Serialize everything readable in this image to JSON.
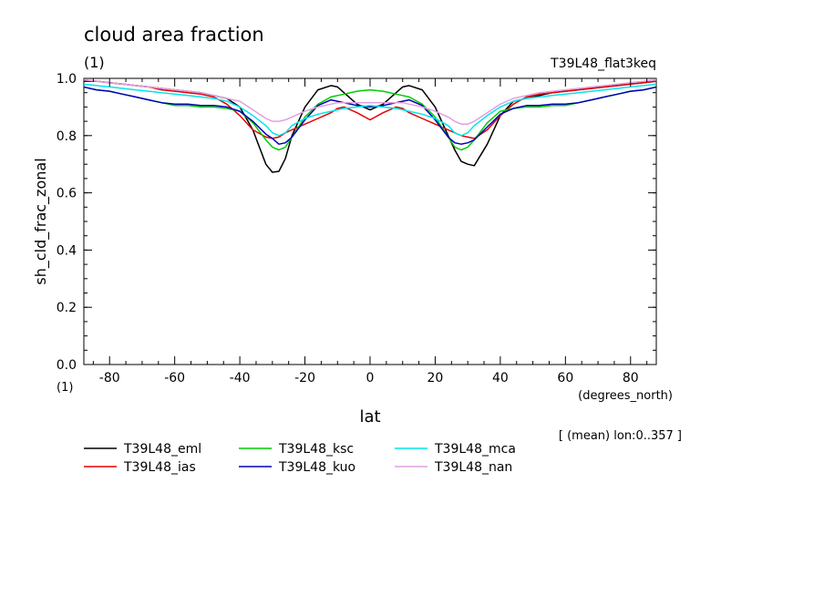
{
  "chart_data": {
    "type": "line",
    "title": "cloud area fraction",
    "title_units": "(1)",
    "subtitle_right": "T39L48_flat3keq",
    "ylabel": "sh_cld_frac_zonal",
    "ylabel_units": "(1)",
    "xlabel": "lat",
    "xlabel_units": "(degrees_north)",
    "footnote": "[ (mean) lon:0..357 ]",
    "xlim": [
      -87.9,
      87.9
    ],
    "ylim": [
      0.0,
      1.0
    ],
    "x_ticks": [
      -80,
      -60,
      -40,
      -20,
      0,
      20,
      40,
      60,
      80
    ],
    "x_tick_labels": [
      "-80",
      "-60",
      "-40",
      "-20",
      "0",
      "20",
      "40",
      "60",
      "80"
    ],
    "y_ticks": [
      0.0,
      0.2,
      0.4,
      0.6,
      0.8,
      1.0
    ],
    "y_tick_labels": [
      "0.0",
      "0.2",
      "0.4",
      "0.6",
      "0.8",
      "1.0"
    ],
    "grid": false,
    "legend_position": "bottom",
    "x": [
      -88,
      -84,
      -80,
      -76,
      -72,
      -68,
      -64,
      -60,
      -56,
      -52,
      -48,
      -44,
      -40,
      -36,
      -32,
      -30,
      -28,
      -26,
      -24,
      -20,
      -16,
      -12,
      -10,
      -8,
      -4,
      0,
      4,
      8,
      10,
      12,
      16,
      20,
      24,
      26,
      28,
      30,
      32,
      36,
      40,
      44,
      48,
      52,
      56,
      60,
      64,
      68,
      72,
      76,
      80,
      84,
      88
    ],
    "series": [
      {
        "name": "T39L48_eml",
        "color": "#000000",
        "values": [
          0.99,
          0.99,
          0.985,
          0.98,
          0.975,
          0.97,
          0.965,
          0.96,
          0.955,
          0.95,
          0.94,
          0.93,
          0.9,
          0.82,
          0.7,
          0.672,
          0.675,
          0.72,
          0.8,
          0.9,
          0.96,
          0.975,
          0.97,
          0.95,
          0.91,
          0.89,
          0.91,
          0.95,
          0.97,
          0.975,
          0.96,
          0.9,
          0.8,
          0.75,
          0.71,
          0.7,
          0.695,
          0.77,
          0.87,
          0.92,
          0.93,
          0.94,
          0.95,
          0.955,
          0.96,
          0.965,
          0.97,
          0.975,
          0.98,
          0.985,
          0.99
        ]
      },
      {
        "name": "T39L48_ias",
        "color": "#e60000",
        "values": [
          0.995,
          0.99,
          0.985,
          0.98,
          0.975,
          0.97,
          0.96,
          0.955,
          0.95,
          0.945,
          0.935,
          0.91,
          0.87,
          0.82,
          0.795,
          0.79,
          0.795,
          0.81,
          0.82,
          0.84,
          0.86,
          0.88,
          0.895,
          0.9,
          0.88,
          0.855,
          0.88,
          0.9,
          0.895,
          0.88,
          0.86,
          0.84,
          0.82,
          0.81,
          0.8,
          0.795,
          0.79,
          0.82,
          0.87,
          0.91,
          0.935,
          0.945,
          0.95,
          0.955,
          0.96,
          0.965,
          0.97,
          0.975,
          0.98,
          0.985,
          0.99
        ]
      },
      {
        "name": "T39L48_ksc",
        "color": "#00cc00",
        "values": [
          0.97,
          0.96,
          0.955,
          0.945,
          0.935,
          0.925,
          0.915,
          0.905,
          0.905,
          0.9,
          0.9,
          0.895,
          0.885,
          0.845,
          0.785,
          0.76,
          0.75,
          0.76,
          0.795,
          0.865,
          0.91,
          0.935,
          0.94,
          0.945,
          0.955,
          0.96,
          0.955,
          0.945,
          0.94,
          0.935,
          0.91,
          0.865,
          0.795,
          0.76,
          0.75,
          0.76,
          0.785,
          0.845,
          0.885,
          0.895,
          0.9,
          0.9,
          0.905,
          0.905,
          0.915,
          0.925,
          0.935,
          0.945,
          0.955,
          0.96,
          0.97
        ]
      },
      {
        "name": "T39L48_kuo",
        "color": "#0000bb",
        "values": [
          0.97,
          0.96,
          0.955,
          0.945,
          0.935,
          0.925,
          0.915,
          0.91,
          0.91,
          0.905,
          0.905,
          0.9,
          0.885,
          0.85,
          0.805,
          0.79,
          0.77,
          0.775,
          0.795,
          0.855,
          0.905,
          0.925,
          0.92,
          0.915,
          0.905,
          0.9,
          0.905,
          0.915,
          0.92,
          0.925,
          0.905,
          0.855,
          0.795,
          0.775,
          0.77,
          0.775,
          0.785,
          0.83,
          0.875,
          0.895,
          0.905,
          0.905,
          0.91,
          0.91,
          0.915,
          0.925,
          0.935,
          0.945,
          0.955,
          0.96,
          0.97
        ]
      },
      {
        "name": "T39L48_mca",
        "color": "#00e5ee",
        "values": [
          0.98,
          0.975,
          0.97,
          0.965,
          0.96,
          0.955,
          0.95,
          0.945,
          0.94,
          0.935,
          0.93,
          0.92,
          0.9,
          0.87,
          0.835,
          0.81,
          0.8,
          0.81,
          0.835,
          0.86,
          0.875,
          0.885,
          0.89,
          0.895,
          0.9,
          0.905,
          0.9,
          0.895,
          0.89,
          0.885,
          0.875,
          0.86,
          0.835,
          0.81,
          0.8,
          0.81,
          0.835,
          0.87,
          0.9,
          0.92,
          0.93,
          0.935,
          0.94,
          0.945,
          0.95,
          0.955,
          0.96,
          0.965,
          0.97,
          0.975,
          0.98
        ]
      },
      {
        "name": "T39L48_nan",
        "color": "#e0a0e0",
        "values": [
          0.995,
          0.99,
          0.985,
          0.98,
          0.975,
          0.97,
          0.965,
          0.96,
          0.955,
          0.95,
          0.94,
          0.93,
          0.92,
          0.89,
          0.86,
          0.85,
          0.85,
          0.855,
          0.865,
          0.885,
          0.9,
          0.91,
          0.915,
          0.915,
          0.915,
          0.915,
          0.915,
          0.915,
          0.915,
          0.91,
          0.9,
          0.885,
          0.865,
          0.85,
          0.84,
          0.84,
          0.85,
          0.88,
          0.91,
          0.93,
          0.94,
          0.95,
          0.955,
          0.96,
          0.965,
          0.97,
          0.975,
          0.98,
          0.985,
          0.99,
          0.995
        ]
      }
    ]
  }
}
